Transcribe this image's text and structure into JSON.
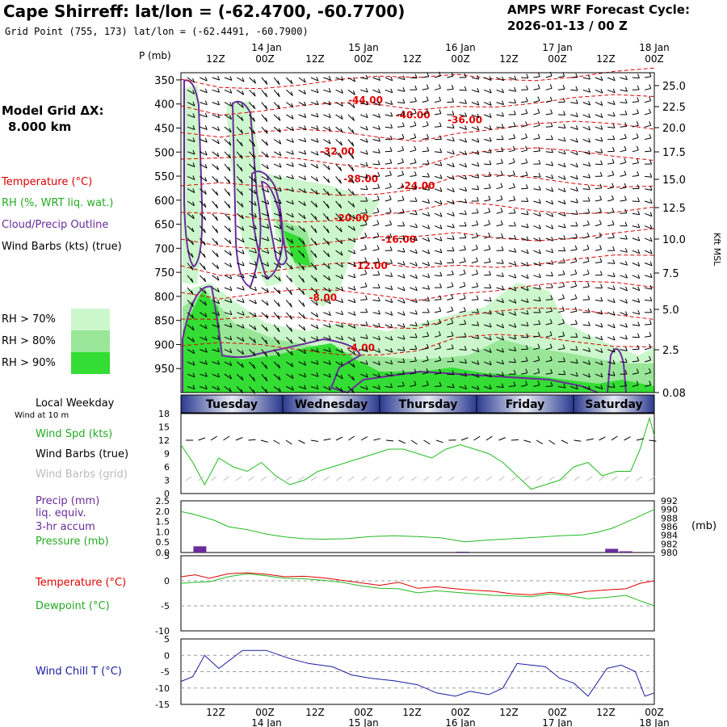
{
  "header": {
    "title": "Cape Shirreff:  lat/lon = (-62.4700, -60.7700)",
    "grid_point": "Grid Point (755, 173) lat/lon = (-62.4491, -60.7900)",
    "cycle_line1": "AMPS WRF Forecast Cycle:",
    "cycle_line2": "2026-01-13 / 00  Z"
  },
  "time_axis": {
    "top_ticks": [
      "12Z",
      "00Z",
      "12Z",
      "00Z",
      "12Z",
      "00Z",
      "12Z",
      "00Z",
      "12Z",
      "00Z"
    ],
    "date_labels": [
      "14 Jan",
      "15 Jan",
      "16 Jan",
      "17 Jan",
      "18 Jan"
    ],
    "weekdays": [
      "Tuesday",
      "Wednesday",
      "Thursday",
      "Friday",
      "Saturday"
    ],
    "weekday_header": "Local Weekday",
    "wind_height": "Wind at 10 m"
  },
  "model": {
    "label": "Model Grid ΔX:",
    "value": "8.000 km"
  },
  "legend": {
    "temperature": "Temperature (°C)",
    "rh": "RH (%, WRT liq. wat.)",
    "cloud": "Cloud/Precip Outline",
    "wind": "Wind Barbs (kts) (true)",
    "rh70": "RH > 70%",
    "rh80": "RH > 80%",
    "rh90": "RH > 90%",
    "colors": {
      "rh70": "#ccf7cc",
      "rh80": "#99e699",
      "rh90": "#33dd33",
      "temp": "#e00000",
      "cloud": "#6a2c9a"
    }
  },
  "panel_labels": {
    "p_mb": "P (mb)",
    "kft": "Kft MSL",
    "wind_spd": "Wind Spd (kts)",
    "wind_barbs_true": "Wind Barbs (true)",
    "wind_barbs_grid": "Wind Barbs (grid)",
    "precip1": "Precip (mm)",
    "precip2": "liq. equiv.",
    "precip3": "3-hr accum",
    "pressure": "Pressure (mb)",
    "mb": "(mb)",
    "temperature": "Temperature (°C)",
    "dewpoint": "Dewpoint (°C)",
    "windchill": "Wind Chill T (°C)"
  },
  "chart_data": [
    {
      "type": "area",
      "name": "time-height cross section",
      "pressure_ticks": [
        350,
        400,
        450,
        500,
        550,
        600,
        650,
        700,
        750,
        800,
        850,
        900,
        950
      ],
      "height_ticks_kft": [
        "25.0",
        "22.5",
        "20.0",
        "17.5",
        "15.0",
        "12.5",
        "10.0",
        "7.5",
        "5.0",
        "2.5",
        "0.08"
      ],
      "temperature_labels": [
        {
          "label": "-44.00",
          "t": 0.39,
          "p": 392
        },
        {
          "label": "-40.00",
          "t": 0.49,
          "p": 423
        },
        {
          "label": "-36.00",
          "t": 0.6,
          "p": 433
        },
        {
          "label": "-32.00",
          "t": 0.33,
          "p": 499
        },
        {
          "label": "-28.00",
          "t": 0.38,
          "p": 556
        },
        {
          "label": "-24.00",
          "t": 0.5,
          "p": 570
        },
        {
          "label": "-20.00",
          "t": 0.36,
          "p": 637
        },
        {
          "label": "-16.00",
          "t": 0.46,
          "p": 682
        },
        {
          "label": "-12.00",
          "t": 0.4,
          "p": 736
        },
        {
          "label": "-8.00",
          "t": 0.3,
          "p": 803
        },
        {
          "label": "-4.00",
          "t": 0.38,
          "p": 907
        }
      ]
    },
    {
      "type": "line",
      "name": "wind speed",
      "ylim": [
        0,
        18
      ],
      "yticks": [
        0,
        3,
        6,
        9,
        12,
        15,
        18
      ],
      "x": [
        0,
        0.025,
        0.05,
        0.08,
        0.11,
        0.14,
        0.17,
        0.2,
        0.23,
        0.26,
        0.29,
        0.32,
        0.35,
        0.38,
        0.41,
        0.44,
        0.47,
        0.5,
        0.53,
        0.56,
        0.59,
        0.62,
        0.65,
        0.68,
        0.71,
        0.74,
        0.77,
        0.8,
        0.83,
        0.86,
        0.89,
        0.92,
        0.95,
        0.97,
        0.99,
        1
      ],
      "values": [
        11,
        7,
        2,
        8,
        6,
        5,
        7,
        4,
        2,
        3,
        5,
        6,
        7,
        8,
        9,
        10,
        10,
        9,
        8,
        10,
        11,
        10,
        9,
        7,
        4,
        1,
        2,
        3,
        6,
        7,
        4,
        5,
        5,
        10,
        17,
        13
      ]
    },
    {
      "type": "line",
      "name": "precip and pressure",
      "ylim_left": [
        0,
        2.5
      ],
      "yticks_left": [
        "0.0",
        "0.5",
        "1.0",
        "1.5",
        "2.0",
        "2.5"
      ],
      "yticks_right": [
        980,
        982,
        984,
        986,
        988,
        990,
        992
      ],
      "pressure_x": [
        0,
        0.03,
        0.07,
        0.1,
        0.14,
        0.18,
        0.22,
        0.26,
        0.3,
        0.35,
        0.4,
        0.45,
        0.5,
        0.55,
        0.6,
        0.65,
        0.7,
        0.75,
        0.8,
        0.85,
        0.88,
        0.91,
        0.94,
        0.97,
        1
      ],
      "pressure": [
        989.5,
        988.8,
        987.5,
        986,
        985.3,
        984.3,
        983.6,
        983.2,
        983.1,
        983.2,
        983.7,
        983.9,
        983.7,
        983.4,
        982.5,
        982.9,
        983.2,
        983.5,
        983.9,
        984.1,
        984.7,
        985.6,
        987,
        988.5,
        990
      ],
      "precip_x": [
        0.04,
        0.595,
        0.91,
        0.94
      ],
      "precip": [
        0.3,
        0.04,
        0.18,
        0.06
      ]
    },
    {
      "type": "line",
      "name": "temperature and dewpoint",
      "ylim": [
        -10,
        5
      ],
      "yticks": [
        -10,
        -5,
        0
      ],
      "x": [
        0,
        0.03,
        0.06,
        0.1,
        0.14,
        0.18,
        0.22,
        0.26,
        0.3,
        0.34,
        0.38,
        0.42,
        0.46,
        0.5,
        0.54,
        0.58,
        0.62,
        0.66,
        0.7,
        0.74,
        0.78,
        0.82,
        0.86,
        0.9,
        0.94,
        0.97,
        1
      ],
      "temperature": [
        0.8,
        1.2,
        0.5,
        1.4,
        1.6,
        1.3,
        0.8,
        0.9,
        0.6,
        0.1,
        -0.4,
        -0.9,
        -0.3,
        -1.5,
        -1.2,
        -1.6,
        -1.9,
        -2.1,
        -2.6,
        -2.8,
        -2.3,
        -2.7,
        -2.1,
        -1.8,
        -1.6,
        -0.5,
        0
      ],
      "dewpoint": [
        -0.5,
        -0.3,
        -0.2,
        0.8,
        1.4,
        1.0,
        0.5,
        0.4,
        0.1,
        -0.3,
        -1.0,
        -1.5,
        -1.6,
        -2.4,
        -2.0,
        -2.3,
        -2.6,
        -2.9,
        -3.0,
        -3.2,
        -2.6,
        -3.0,
        -3.6,
        -3.3,
        -2.9,
        -4.0,
        -5.0
      ]
    },
    {
      "type": "line",
      "name": "wind chill",
      "ylim": [
        -15,
        5
      ],
      "yticks": [
        -15,
        -10,
        -5,
        0,
        5
      ],
      "x": [
        0,
        0.025,
        0.05,
        0.08,
        0.13,
        0.18,
        0.23,
        0.27,
        0.32,
        0.36,
        0.4,
        0.45,
        0.5,
        0.54,
        0.58,
        0.61,
        0.65,
        0.68,
        0.71,
        0.74,
        0.77,
        0.8,
        0.83,
        0.86,
        0.9,
        0.93,
        0.96,
        0.98,
        1
      ],
      "values": [
        -8,
        -6.5,
        0,
        -4,
        1.5,
        1.5,
        -1,
        -2.5,
        -3.5,
        -6,
        -7,
        -7.8,
        -9,
        -11.5,
        -12.5,
        -11,
        -12,
        -10,
        -2.5,
        -3,
        -3.5,
        -7,
        -8.5,
        -12.5,
        -4,
        -3,
        -5,
        -12.5,
        -11.5
      ]
    }
  ]
}
